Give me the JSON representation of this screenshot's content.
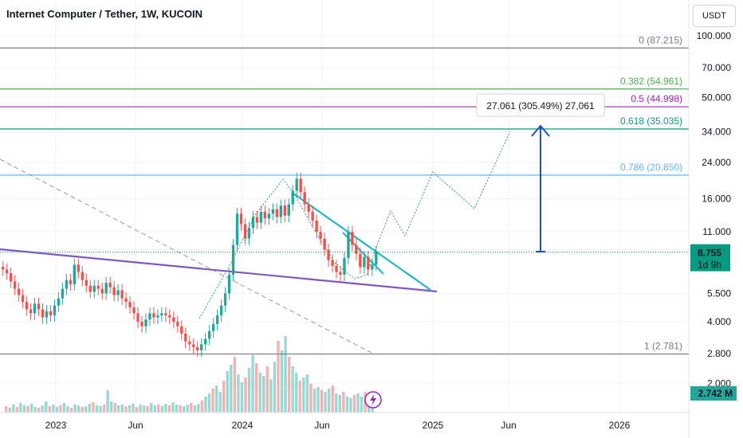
{
  "header": {
    "title": "Internet Computer / Tether, 1W, KUCOIN",
    "currency": "USDT"
  },
  "chart_data": {
    "type": "candlestick",
    "yscale": "log",
    "ylim": [
      1.7,
      120
    ],
    "y_ticks": [
      "100.000",
      "70.000",
      "50.000",
      "34.000",
      "24.000",
      "16.000",
      "11.000",
      "5.500",
      "4.000",
      "2.800",
      "2.000"
    ],
    "x_ticks": [
      "2023",
      "Jun",
      "2024",
      "Jun",
      "2025",
      "Jun",
      "2026"
    ],
    "fib_levels": [
      {
        "label": "0 (87.215)",
        "value": 87.215,
        "color": "#787b86"
      },
      {
        "label": "0.382 (54.961)",
        "value": 54.961,
        "color": "#4caf50"
      },
      {
        "label": "0.5 (44.998)",
        "value": 44.998,
        "color": "#9c27b0"
      },
      {
        "label": "0.618 (35.035)",
        "value": 35.035,
        "color": "#089981"
      },
      {
        "label": "0.786 (20.850)",
        "value": 20.85,
        "color": "#64b5f6"
      },
      {
        "label": "1 (2.781)",
        "value": 2.781,
        "color": "#787b86"
      }
    ],
    "measure_label": "27.061 (305.49%) 27,061",
    "last_price": {
      "value": "8.755",
      "countdown": "1d 9h",
      "color": "#089981"
    },
    "volume_label": "2.742 M",
    "colors": {
      "up": "#26a69a",
      "down": "#ef5350",
      "trend_purple": "#7e57c2",
      "trend_cyan": "#22b5c9",
      "projection": "#2e9e5a",
      "arrow": "#1e4fbf"
    }
  }
}
